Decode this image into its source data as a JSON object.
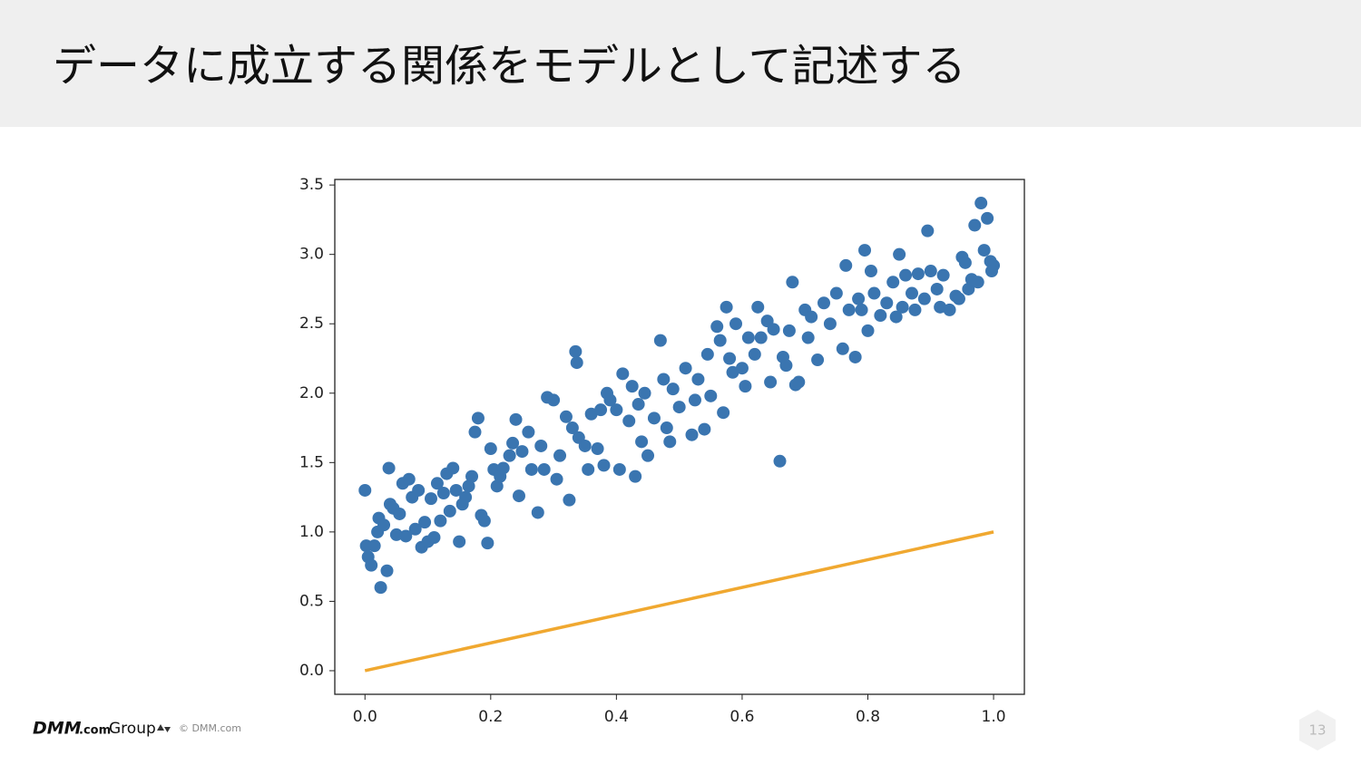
{
  "slide": {
    "title": "データに成立する関係をモデルとして記述する",
    "brand_main": "DMM",
    "brand_suffix": ".com",
    "brand_group": "Group",
    "copyright": "© DMM.com",
    "page_number": "13"
  },
  "chart_data": {
    "type": "scatter",
    "xlim": [
      -0.048,
      1.049
    ],
    "ylim": [
      -0.17,
      3.54
    ],
    "xticks": [
      {
        "value": 0,
        "label": "0.0"
      },
      0.2,
      0.4,
      0.6,
      0.8,
      {
        "value": 1,
        "label": "1.0"
      }
    ],
    "yticks": [
      {
        "value": 0,
        "label": "0.0"
      },
      0.5,
      {
        "value": 1,
        "label": "1.0"
      },
      1.5,
      {
        "value": 2,
        "label": "2.0"
      },
      2.5,
      {
        "value": 3,
        "label": "3.0"
      },
      3.5
    ],
    "series": [
      {
        "type": "scatter",
        "color": "#3a75b0",
        "x": [
          0,
          0.002,
          0.005,
          0.01,
          0.015,
          0.02,
          0.022,
          0.025,
          0.03,
          0.035,
          0.038,
          0.04,
          0.045,
          0.05,
          0.055,
          0.06,
          0.065,
          0.07,
          0.075,
          0.08,
          0.085,
          0.09,
          0.095,
          0.1,
          0.105,
          0.11,
          0.115,
          0.12,
          0.125,
          0.13,
          0.135,
          0.14,
          0.145,
          0.15,
          0.155,
          0.16,
          0.165,
          0.17,
          0.175,
          0.18,
          0.185,
          0.19,
          0.195,
          0.2,
          0.205,
          0.21,
          0.215,
          0.22,
          0.23,
          0.235,
          0.24,
          0.245,
          0.25,
          0.26,
          0.265,
          0.275,
          0.28,
          0.285,
          0.29,
          0.3,
          0.305,
          0.31,
          0.32,
          0.325,
          0.33,
          0.335,
          0.337,
          0.34,
          0.35,
          0.355,
          0.36,
          0.37,
          0.375,
          0.38,
          0.385,
          0.39,
          0.4,
          0.405,
          0.41,
          0.42,
          0.425,
          0.43,
          0.435,
          0.44,
          0.445,
          0.45,
          0.46,
          0.47,
          0.475,
          0.48,
          0.485,
          0.49,
          0.5,
          0.51,
          0.52,
          0.525,
          0.53,
          0.54,
          0.545,
          0.55,
          0.56,
          0.565,
          0.57,
          0.575,
          0.58,
          0.585,
          0.59,
          0.6,
          0.605,
          0.61,
          0.62,
          0.625,
          0.63,
          0.64,
          0.645,
          0.65,
          0.66,
          0.665,
          0.67,
          0.675,
          0.68,
          0.685,
          0.69,
          0.7,
          0.705,
          0.71,
          0.72,
          0.73,
          0.74,
          0.75,
          0.76,
          0.765,
          0.77,
          0.78,
          0.785,
          0.79,
          0.795,
          0.8,
          0.805,
          0.81,
          0.82,
          0.83,
          0.84,
          0.845,
          0.85,
          0.855,
          0.86,
          0.87,
          0.875,
          0.88,
          0.89,
          0.895,
          0.9,
          0.91,
          0.915,
          0.92,
          0.93,
          0.94,
          0.945,
          0.95,
          0.955,
          0.96,
          0.965,
          0.97,
          0.975,
          0.98,
          0.985,
          0.99,
          0.995,
          1.0,
          0.997
        ],
        "values": [
          1.3,
          0.9,
          0.82,
          0.76,
          0.9,
          1.0,
          1.1,
          0.6,
          1.05,
          0.72,
          1.46,
          1.2,
          1.17,
          0.98,
          1.13,
          1.35,
          0.97,
          1.38,
          1.25,
          1.02,
          1.3,
          0.89,
          1.07,
          0.93,
          1.24,
          0.96,
          1.35,
          1.08,
          1.28,
          1.42,
          1.15,
          1.46,
          1.3,
          0.93,
          1.2,
          1.25,
          1.33,
          1.4,
          1.72,
          1.82,
          1.12,
          1.08,
          0.92,
          1.6,
          1.45,
          1.33,
          1.4,
          1.46,
          1.55,
          1.64,
          1.81,
          1.26,
          1.58,
          1.72,
          1.45,
          1.14,
          1.62,
          1.45,
          1.97,
          1.95,
          1.38,
          1.55,
          1.83,
          1.23,
          1.75,
          2.3,
          2.22,
          1.68,
          1.62,
          1.45,
          1.85,
          1.6,
          1.88,
          1.48,
          2.0,
          1.95,
          1.88,
          1.45,
          2.14,
          1.8,
          2.05,
          1.4,
          1.92,
          1.65,
          2.0,
          1.55,
          1.82,
          2.38,
          2.1,
          1.75,
          1.65,
          2.03,
          1.9,
          2.18,
          1.7,
          1.95,
          2.1,
          1.74,
          2.28,
          1.98,
          2.48,
          2.38,
          1.86,
          2.62,
          2.25,
          2.15,
          2.5,
          2.18,
          2.05,
          2.4,
          2.28,
          2.62,
          2.4,
          2.52,
          2.08,
          2.46,
          1.51,
          2.26,
          2.2,
          2.45,
          2.8,
          2.06,
          2.08,
          2.6,
          2.4,
          2.55,
          2.24,
          2.65,
          2.5,
          2.72,
          2.32,
          2.92,
          2.6,
          2.26,
          2.68,
          2.6,
          3.03,
          2.45,
          2.88,
          2.72,
          2.56,
          2.65,
          2.8,
          2.55,
          3.0,
          2.62,
          2.85,
          2.72,
          2.6,
          2.86,
          2.68,
          3.17,
          2.88,
          2.75,
          2.62,
          2.85,
          2.6,
          2.7,
          2.68,
          2.98,
          2.94,
          2.75,
          2.82,
          3.21,
          2.8,
          3.37,
          3.03,
          3.26,
          2.95,
          2.92,
          2.88
        ]
      },
      {
        "type": "line",
        "color": "#f0a830",
        "x": [
          0,
          1
        ],
        "values": [
          0,
          1
        ]
      }
    ]
  }
}
